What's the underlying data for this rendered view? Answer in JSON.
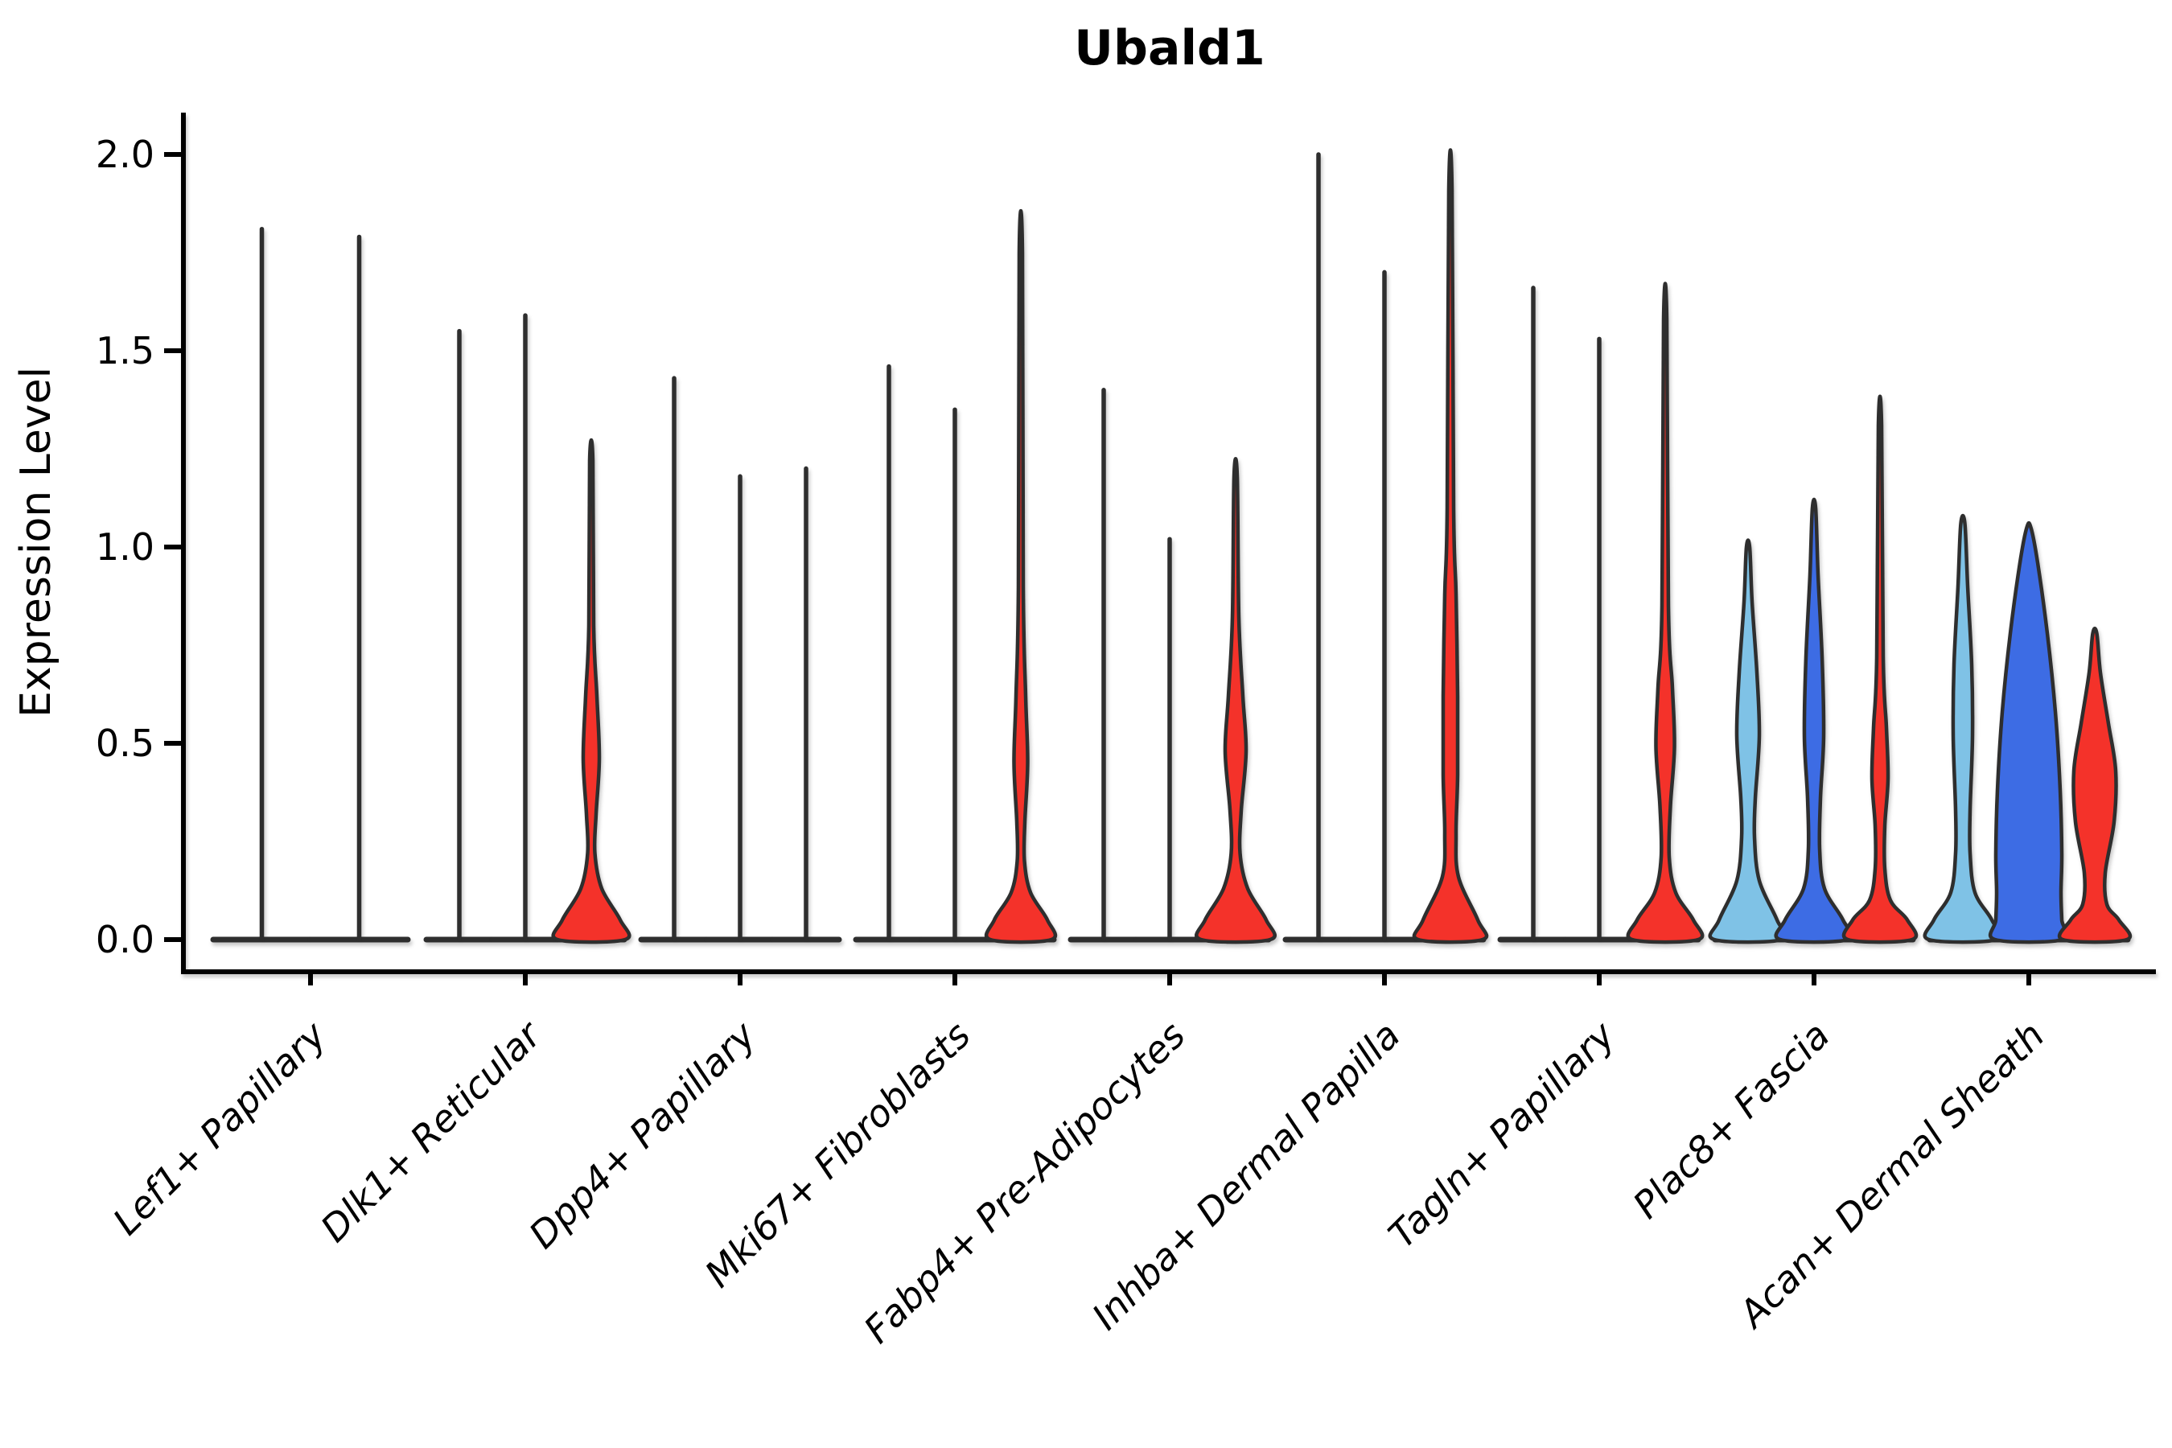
{
  "title": "Ubald1",
  "y_axis": {
    "label": "Expression Level",
    "tick_labels": [
      "0.0",
      "0.5",
      "1.0",
      "1.5",
      "2.0"
    ]
  },
  "colors": {
    "red": "#f4312b",
    "lightblue": "#7fc2e6",
    "darkblue": "#3e6ce4",
    "violin_stroke": "#2d2d2d",
    "axis": "#000000",
    "background": "#ffffff"
  },
  "chart_data": {
    "type": "violin",
    "title": "Ubald1",
    "xlabel": "",
    "ylabel": "Expression Level",
    "ylim": [
      0,
      2.0
    ],
    "yticks": [
      0.0,
      0.5,
      1.0,
      1.5,
      2.0
    ],
    "ytick_labels": [
      "0.0",
      "0.5",
      "1.0",
      "1.5",
      "2.0"
    ],
    "grid": false,
    "legend": "none",
    "categories": [
      "Lef1+ Papillary",
      "Dlk1+ Reticular",
      "Dpp4+ Papillary",
      "Mki67+ Fibroblasts",
      "Fabp4+ Pre-Adipocytes",
      "Inhba+ Dermal Papilla",
      "Tagln+ Papillary",
      "Plac8+ Fascia",
      "Acan+ Dermal Sheath"
    ],
    "groups": [
      {
        "label": "Lef1+ Papillary",
        "center_x": 386,
        "violins": [
          {
            "offset": -60.5,
            "base_half_width": 60.5,
            "max_expression": 1.81,
            "fill": "none"
          },
          {
            "offset": 60.5,
            "base_half_width": 60.5,
            "max_expression": 1.79,
            "fill": "none"
          }
        ]
      },
      {
        "label": "Dlk1+ Reticular",
        "center_x": 653,
        "violins": [
          {
            "offset": -82,
            "base_half_width": 41,
            "max_expression": 1.55,
            "fill": "none"
          },
          {
            "offset": 0,
            "base_half_width": 41,
            "max_expression": 1.59,
            "fill": "none"
          },
          {
            "offset": 82,
            "base_half_width": 41,
            "max_expression": 1.22,
            "fill": "red",
            "profile": [
              [
                1.22,
                2
              ],
              [
                0.8,
                3
              ],
              [
                0.62,
                7
              ],
              [
                0.46,
                10
              ],
              [
                0.32,
                6
              ],
              [
                0.22,
                4.5
              ],
              [
                0.13,
                13
              ],
              [
                0.05,
                36
              ],
              [
                0,
                42
              ]
            ]
          }
        ]
      },
      {
        "label": "Dpp4+ Papillary",
        "center_x": 920,
        "violins": [
          {
            "offset": -82,
            "base_half_width": 41,
            "max_expression": 1.43,
            "fill": "none"
          },
          {
            "offset": 0,
            "base_half_width": 41,
            "max_expression": 1.18,
            "fill": "none"
          },
          {
            "offset": 82,
            "base_half_width": 41,
            "max_expression": 1.2,
            "fill": "none"
          }
        ]
      },
      {
        "label": "Mki67+ Fibroblasts",
        "center_x": 1187,
        "violins": [
          {
            "offset": -82,
            "base_half_width": 41,
            "max_expression": 1.46,
            "fill": "none"
          },
          {
            "offset": 0,
            "base_half_width": 41,
            "max_expression": 1.35,
            "fill": "none"
          },
          {
            "offset": 82,
            "base_half_width": 41,
            "max_expression": 1.75,
            "fill": "red",
            "profile": [
              [
                1.75,
                2
              ],
              [
                0.9,
                3
              ],
              [
                0.62,
                6
              ],
              [
                0.45,
                8.5
              ],
              [
                0.3,
                5
              ],
              [
                0.2,
                4.5
              ],
              [
                0.12,
                12
              ],
              [
                0.05,
                33
              ],
              [
                0,
                38
              ]
            ]
          }
        ]
      },
      {
        "label": "Fabp4+ Pre-Adipocytes",
        "center_x": 1454,
        "violins": [
          {
            "offset": -82,
            "base_half_width": 41,
            "max_expression": 1.4,
            "fill": "none"
          },
          {
            "offset": 0,
            "base_half_width": 41,
            "max_expression": 1.02,
            "fill": "none"
          },
          {
            "offset": 82,
            "base_half_width": 41,
            "max_expression": 1.18,
            "fill": "red",
            "profile": [
              [
                1.18,
                2
              ],
              [
                0.82,
                4
              ],
              [
                0.62,
                9
              ],
              [
                0.48,
                13
              ],
              [
                0.33,
                7
              ],
              [
                0.22,
                5.5
              ],
              [
                0.13,
                15
              ],
              [
                0.05,
                38
              ],
              [
                0,
                43
              ]
            ]
          }
        ]
      },
      {
        "label": "Inhba+ Dermal Papilla",
        "center_x": 1721,
        "violins": [
          {
            "offset": -82,
            "base_half_width": 41,
            "max_expression": 2.0,
            "fill": "none"
          },
          {
            "offset": 0,
            "base_half_width": 41,
            "max_expression": 1.7,
            "fill": "none"
          },
          {
            "offset": 82,
            "base_half_width": 41,
            "max_expression": 1.91,
            "fill": "red",
            "profile": [
              [
                1.91,
                2
              ],
              [
                1.1,
                4
              ],
              [
                0.88,
                7
              ],
              [
                0.62,
                9
              ],
              [
                0.42,
                9
              ],
              [
                0.27,
                7
              ],
              [
                0.16,
                10
              ],
              [
                0.05,
                34
              ],
              [
                0,
                40
              ]
            ]
          }
        ]
      },
      {
        "label": "Tagln+ Papillary",
        "center_x": 1988,
        "violins": [
          {
            "offset": -82,
            "base_half_width": 41,
            "max_expression": 1.66,
            "fill": "none"
          },
          {
            "offset": 0,
            "base_half_width": 41,
            "max_expression": 1.53,
            "fill": "none"
          },
          {
            "offset": 82,
            "base_half_width": 41,
            "max_expression": 1.58,
            "fill": "red",
            "profile": [
              [
                1.58,
                2
              ],
              [
                0.85,
                4
              ],
              [
                0.64,
                9
              ],
              [
                0.49,
                11.5
              ],
              [
                0.34,
                6.5
              ],
              [
                0.21,
                5
              ],
              [
                0.12,
                13
              ],
              [
                0.05,
                35
              ],
              [
                0,
                41
              ]
            ]
          }
        ]
      },
      {
        "label": "Plac8+ Fascia",
        "center_x": 2255,
        "violins": [
          {
            "offset": -82,
            "base_half_width": 41,
            "max_expression": 1.0,
            "fill": "lightblue",
            "profile": [
              [
                1.0,
                2
              ],
              [
                0.86,
                5
              ],
              [
                0.68,
                11
              ],
              [
                0.52,
                14
              ],
              [
                0.36,
                9
              ],
              [
                0.26,
                8
              ],
              [
                0.15,
                14
              ],
              [
                0.05,
                36
              ],
              [
                0,
                42
              ]
            ]
          },
          {
            "offset": 0,
            "base_half_width": 41,
            "max_expression": 1.1,
            "fill": "darkblue",
            "profile": [
              [
                1.1,
                2
              ],
              [
                0.93,
                5
              ],
              [
                0.72,
                10
              ],
              [
                0.52,
                12
              ],
              [
                0.36,
                8
              ],
              [
                0.23,
                7
              ],
              [
                0.13,
                13
              ],
              [
                0.05,
                36
              ],
              [
                0,
                42
              ]
            ]
          },
          {
            "offset": 82,
            "base_half_width": 41,
            "max_expression": 1.31,
            "fill": "red",
            "profile": [
              [
                1.31,
                2
              ],
              [
                0.72,
                4
              ],
              [
                0.54,
                8
              ],
              [
                0.41,
                10
              ],
              [
                0.29,
                6
              ],
              [
                0.18,
                6
              ],
              [
                0.1,
                13
              ],
              [
                0.05,
                34
              ],
              [
                0,
                40
              ]
            ]
          }
        ]
      },
      {
        "label": "Acan+ Dermal Sheath",
        "center_x": 2522,
        "violins": [
          {
            "offset": -82,
            "base_half_width": 41,
            "max_expression": 1.06,
            "fill": "lightblue",
            "profile": [
              [
                1.06,
                2.5
              ],
              [
                0.9,
                6
              ],
              [
                0.7,
                11
              ],
              [
                0.52,
                12
              ],
              [
                0.33,
                9
              ],
              [
                0.22,
                9
              ],
              [
                0.12,
                15
              ],
              [
                0.05,
                36
              ],
              [
                0,
                42
              ]
            ]
          },
          {
            "offset": 0,
            "base_half_width": 41,
            "max_expression": 1.05,
            "fill": "darkblue",
            "profile": [
              [
                1.05,
                2.5
              ],
              [
                0.96,
                11
              ],
              [
                0.78,
                23
              ],
              [
                0.58,
                33
              ],
              [
                0.38,
                39
              ],
              [
                0.22,
                41
              ],
              [
                0.12,
                40
              ],
              [
                0.05,
                41
              ],
              [
                0,
                42
              ]
            ]
          },
          {
            "offset": 82,
            "base_half_width": 41,
            "max_expression": 0.78,
            "fill": "red",
            "profile": [
              [
                0.78,
                2.5
              ],
              [
                0.68,
                7
              ],
              [
                0.55,
                17
              ],
              [
                0.43,
                26
              ],
              [
                0.3,
                24
              ],
              [
                0.17,
                13
              ],
              [
                0.09,
                15
              ],
              [
                0.05,
                30
              ],
              [
                0,
                40
              ]
            ]
          }
        ]
      }
    ]
  }
}
